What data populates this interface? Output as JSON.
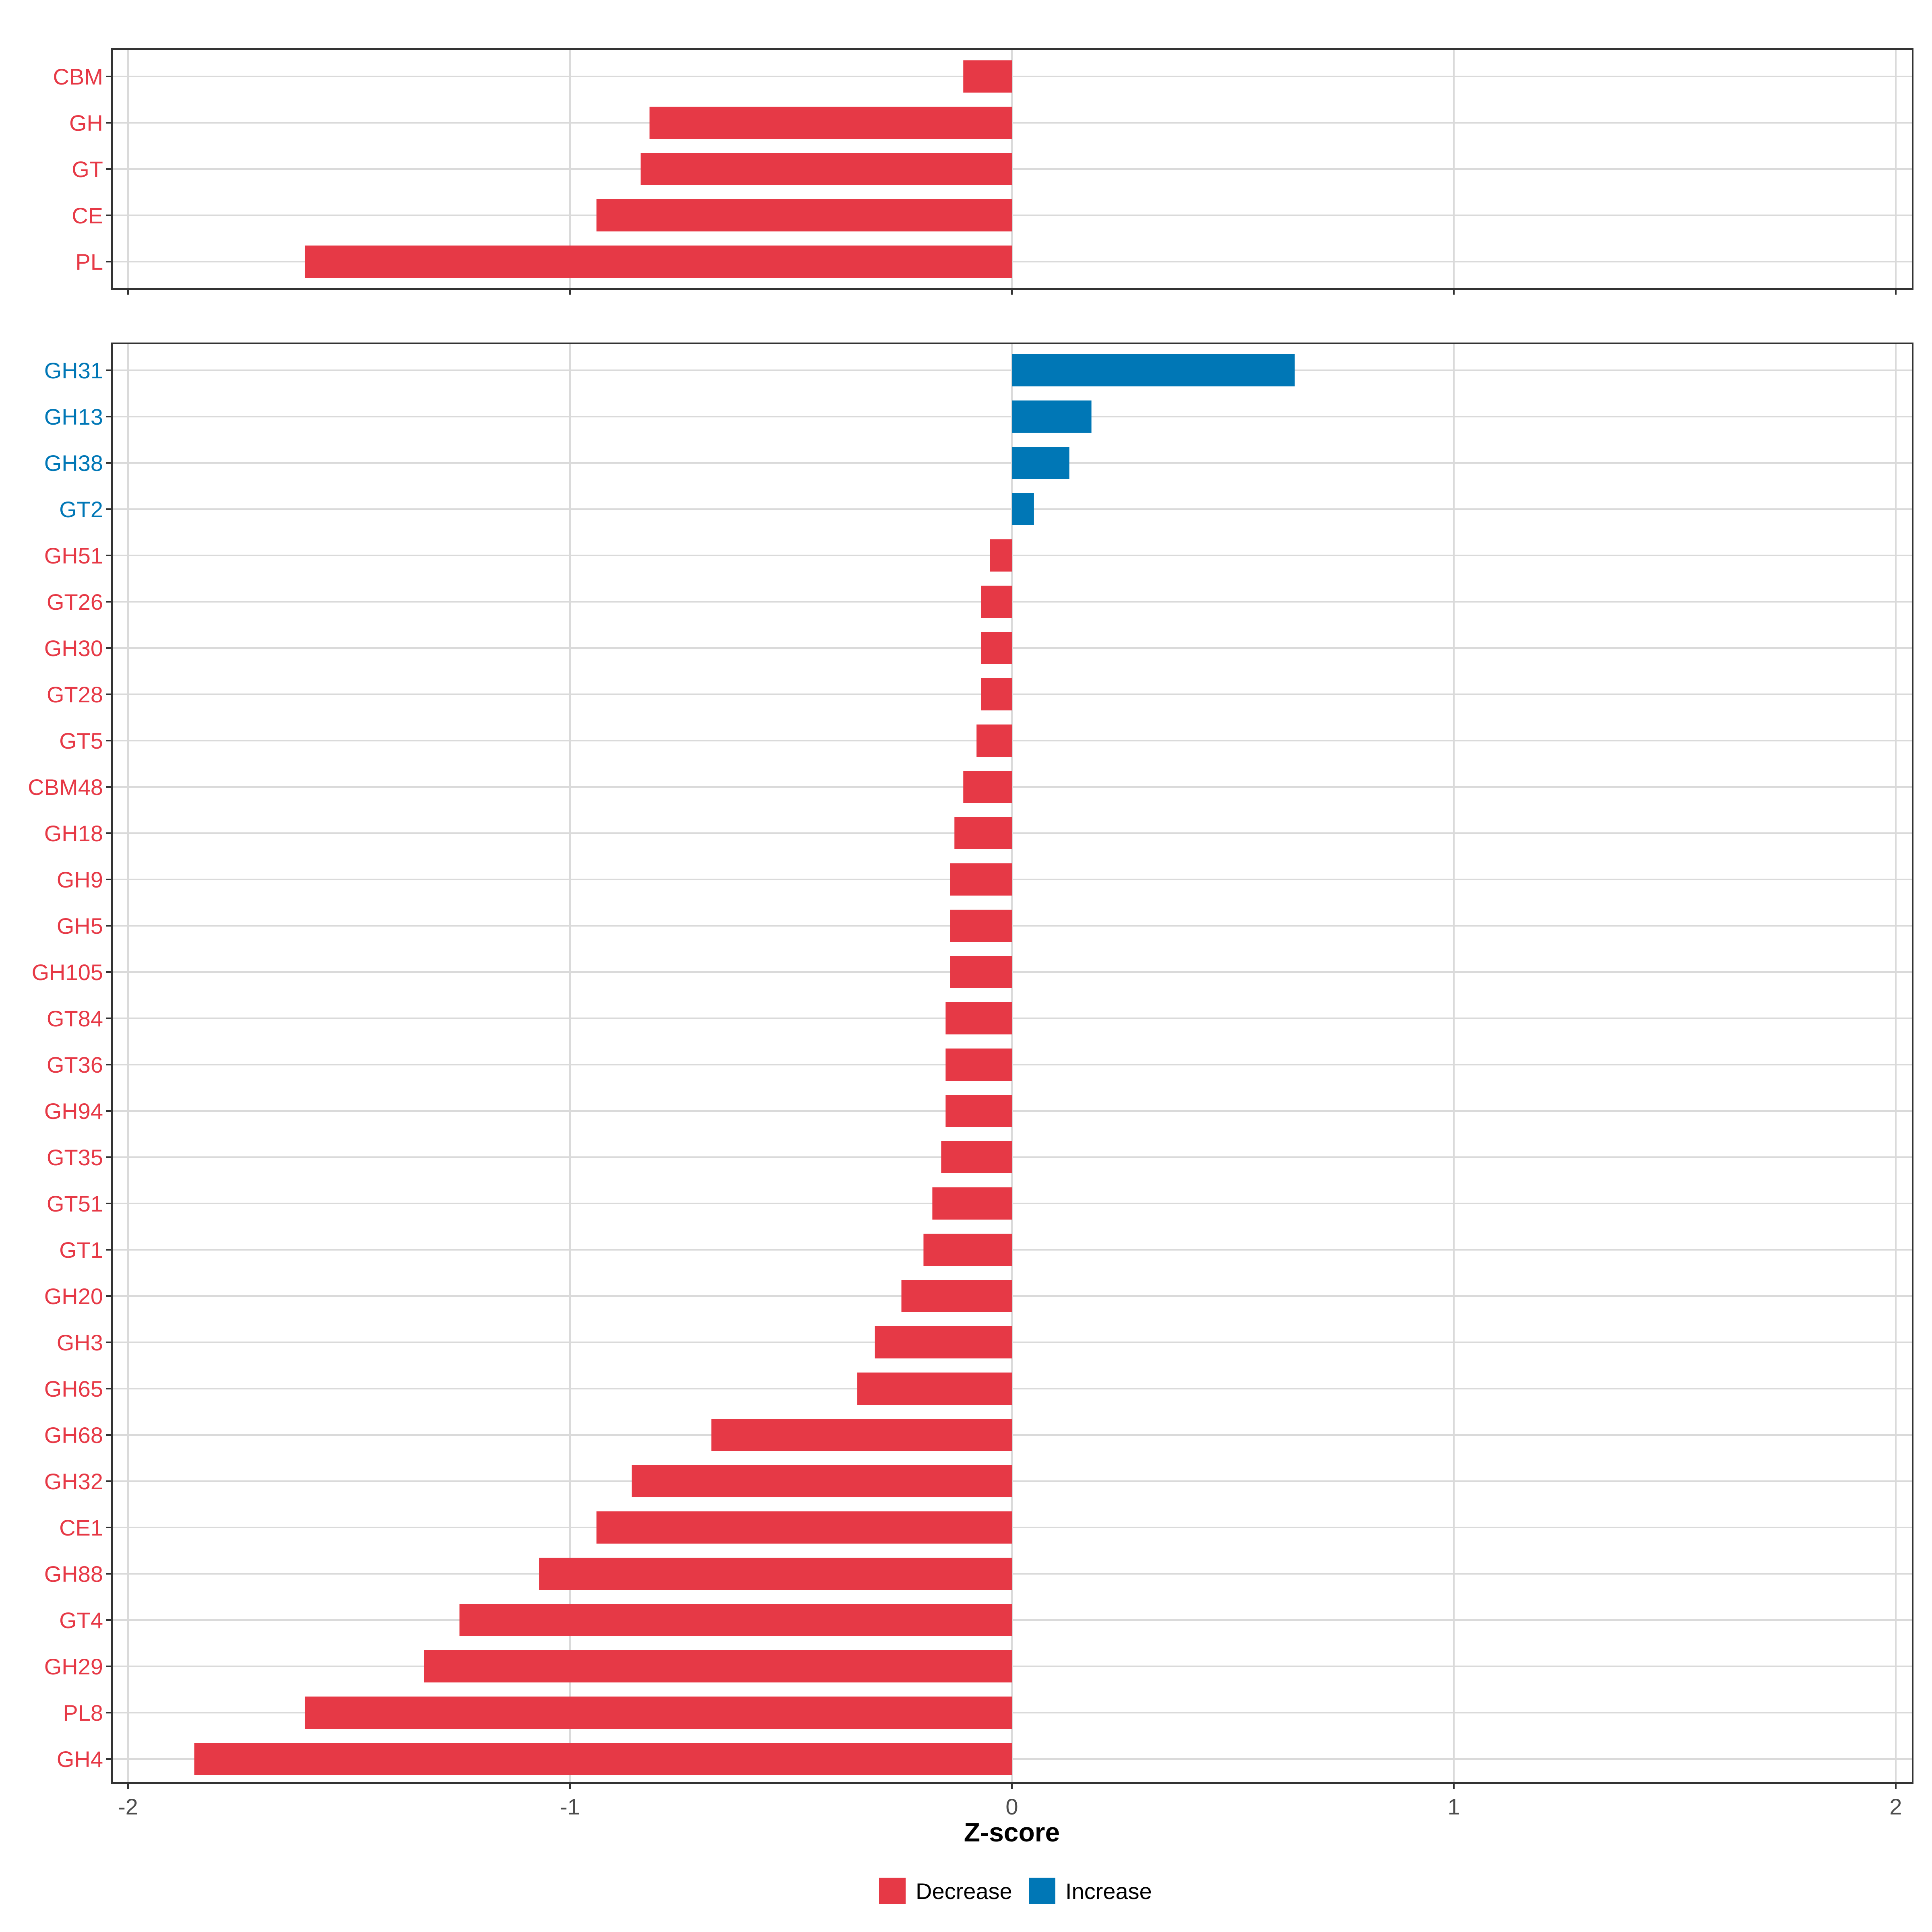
{
  "chart_data": [
    {
      "type": "bar",
      "orientation": "horizontal",
      "panel": "top",
      "categories": [
        "CBM",
        "GH",
        "GT",
        "CE",
        "PL"
      ],
      "values": [
        -0.11,
        -0.82,
        -0.84,
        -0.94,
        -1.6
      ],
      "direction": [
        "Decrease",
        "Decrease",
        "Decrease",
        "Decrease",
        "Decrease"
      ],
      "xlim": [
        -2,
        2
      ],
      "grid": true
    },
    {
      "type": "bar",
      "orientation": "horizontal",
      "panel": "bottom",
      "categories": [
        "GH31",
        "GH13",
        "GH38",
        "GT2",
        "GH51",
        "GT26",
        "GH30",
        "GT28",
        "GT5",
        "CBM48",
        "GH18",
        "GH9",
        "GH5",
        "GH105",
        "GT84",
        "GT36",
        "GH94",
        "GT35",
        "GT51",
        "GT1",
        "GH20",
        "GH3",
        "GH65",
        "GH68",
        "GH32",
        "CE1",
        "GH88",
        "GT4",
        "GH29",
        "PL8",
        "GH4"
      ],
      "values": [
        0.64,
        0.18,
        0.13,
        0.05,
        -0.05,
        -0.07,
        -0.07,
        -0.07,
        -0.08,
        -0.11,
        -0.13,
        -0.14,
        -0.14,
        -0.14,
        -0.15,
        -0.15,
        -0.15,
        -0.16,
        -0.18,
        -0.2,
        -0.25,
        -0.31,
        -0.35,
        -0.68,
        -0.86,
        -0.94,
        -1.07,
        -1.25,
        -1.33,
        -1.6,
        -1.85
      ],
      "direction": [
        "Increase",
        "Increase",
        "Increase",
        "Increase",
        "Decrease",
        "Decrease",
        "Decrease",
        "Decrease",
        "Decrease",
        "Decrease",
        "Decrease",
        "Decrease",
        "Decrease",
        "Decrease",
        "Decrease",
        "Decrease",
        "Decrease",
        "Decrease",
        "Decrease",
        "Decrease",
        "Decrease",
        "Decrease",
        "Decrease",
        "Decrease",
        "Decrease",
        "Decrease",
        "Decrease",
        "Decrease",
        "Decrease",
        "Decrease",
        "Decrease"
      ],
      "xlim": [
        -2,
        2
      ],
      "xticks": [
        -2,
        -1,
        0,
        1,
        2
      ],
      "xtick_labels": [
        "-2",
        "-1",
        "0",
        "1",
        "2"
      ],
      "xlabel": "Z-score",
      "grid": true
    }
  ],
  "legend": {
    "position": "bottom-center",
    "items": [
      {
        "label": "Decrease",
        "color": "#E63946"
      },
      {
        "label": "Increase",
        "color": "#0077B6"
      }
    ]
  },
  "colors": {
    "Decrease": "#E63946",
    "Increase": "#0077B6",
    "grid": "#DADADA",
    "panel_border": "#333333",
    "tick_label": "#4D4D4D"
  }
}
